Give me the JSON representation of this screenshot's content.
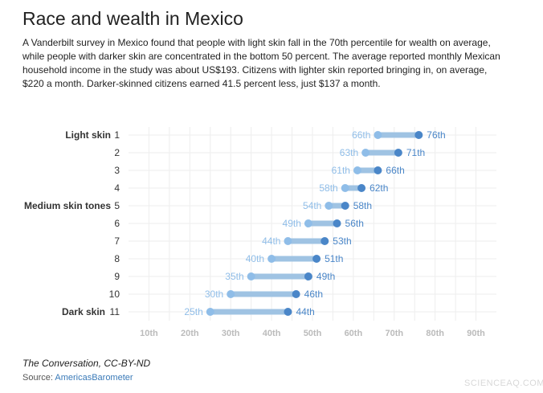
{
  "title": "Race and wealth in Mexico",
  "description": "A Vanderbilt survey in Mexico found that people with light skin fall in the 70th percentile for wealth on average, while people with darker skin are concentrated in the bottom 50 percent. The average reported monthly Mexican household income in the study was about US$193. Citizens with lighter skin reported bringing in, on average, $220 a month. Darker-skinned citizens earned 41.5 percent less, just $137 a month.",
  "credit": "The Conversation, CC-BY-ND",
  "source": {
    "label": "Source: ",
    "link_text": "AmericasBarometer"
  },
  "watermark": "SCIENCEAQ.COM",
  "colors": {
    "low_dot": "#8fbde8",
    "high_dot": "#4a86c8",
    "bar": "#9fc3e3",
    "grid": "#eeeeee",
    "tick_text": "#bbbbbb"
  },
  "chart_data": {
    "type": "dumbbell",
    "title": "",
    "xlabel": "",
    "ylabel": "",
    "xlim": [
      5,
      95
    ],
    "x_ticks": [
      "10th",
      "20th",
      "30th",
      "40th",
      "50th",
      "60th",
      "70th",
      "80th",
      "90th"
    ],
    "x_tick_values": [
      10,
      20,
      30,
      40,
      50,
      60,
      70,
      80,
      90
    ],
    "grid": true,
    "rows": [
      {
        "group": "Light skin",
        "num": "1",
        "low": 66,
        "high": 76,
        "low_label": "66th",
        "high_label": "76th"
      },
      {
        "group": "",
        "num": "2",
        "low": 63,
        "high": 71,
        "low_label": "63th",
        "high_label": "71th"
      },
      {
        "group": "",
        "num": "3",
        "low": 61,
        "high": 66,
        "low_label": "61th",
        "high_label": "66th"
      },
      {
        "group": "",
        "num": "4",
        "low": 58,
        "high": 62,
        "low_label": "58th",
        "high_label": "62th"
      },
      {
        "group": "Medium skin tones",
        "num": "5",
        "low": 54,
        "high": 58,
        "low_label": "54th",
        "high_label": "58th"
      },
      {
        "group": "",
        "num": "6",
        "low": 49,
        "high": 56,
        "low_label": "49th",
        "high_label": "56th"
      },
      {
        "group": "",
        "num": "7",
        "low": 44,
        "high": 53,
        "low_label": "44th",
        "high_label": "53th"
      },
      {
        "group": "",
        "num": "8",
        "low": 40,
        "high": 51,
        "low_label": "40th",
        "high_label": "51th"
      },
      {
        "group": "",
        "num": "9",
        "low": 35,
        "high": 49,
        "low_label": "35th",
        "high_label": "49th"
      },
      {
        "group": "",
        "num": "10",
        "low": 30,
        "high": 46,
        "low_label": "30th",
        "high_label": "46th"
      },
      {
        "group": "Dark skin",
        "num": "11",
        "low": 25,
        "high": 44,
        "low_label": "25th",
        "high_label": "44th"
      }
    ]
  }
}
